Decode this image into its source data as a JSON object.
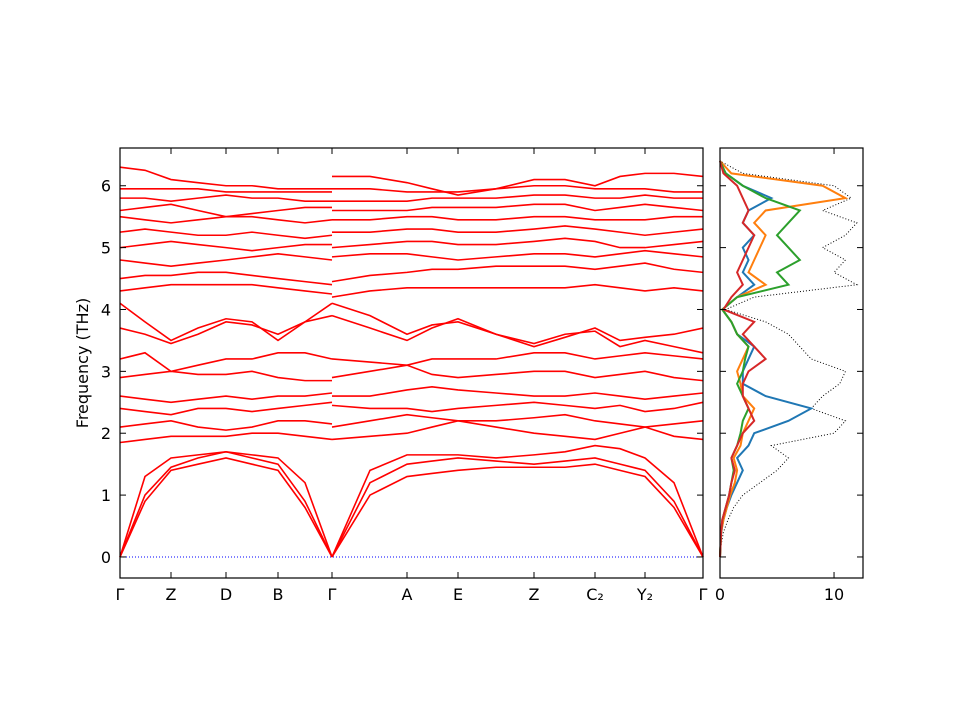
{
  "chart_data": [
    {
      "type": "bands",
      "ylabel": "Frequency (THz)",
      "color": "#ff0000",
      "hline": {
        "value": 0,
        "color": "#0000ff"
      },
      "xlim": [
        0,
        583
      ],
      "ylim": [
        -0.34,
        6.61
      ],
      "yticks": [
        0,
        1,
        2,
        3,
        4,
        5,
        6
      ],
      "xticks": [
        {
          "value": 0,
          "label": "Γ"
        },
        {
          "value": 51,
          "label": "Z"
        },
        {
          "value": 106,
          "label": "D"
        },
        {
          "value": 158,
          "label": "B"
        },
        {
          "value": 212,
          "label": "Γ"
        },
        {
          "value": 287,
          "label": "A"
        },
        {
          "value": 338,
          "label": "E"
        },
        {
          "value": 414,
          "label": "Z"
        },
        {
          "value": 475,
          "label": "C₂"
        },
        {
          "value": 525,
          "label": "Y₂"
        },
        {
          "value": 583,
          "label": "Γ"
        }
      ],
      "x": [
        0,
        25,
        51,
        78,
        106,
        132,
        158,
        185,
        212,
        212,
        212,
        250,
        287,
        312,
        338,
        376,
        414,
        445,
        475,
        500,
        525,
        554,
        583
      ],
      "series": [
        {
          "values": [
            0,
            0.9,
            1.4,
            1.5,
            1.6,
            1.5,
            1.4,
            0.8,
            0,
            null,
            0,
            1.0,
            1.3,
            1.35,
            1.4,
            1.45,
            1.45,
            1.45,
            1.5,
            1.4,
            1.3,
            0.8,
            0
          ]
        },
        {
          "values": [
            0,
            1.0,
            1.45,
            1.6,
            1.7,
            1.6,
            1.5,
            0.9,
            0,
            null,
            0,
            1.2,
            1.5,
            1.55,
            1.6,
            1.55,
            1.5,
            1.55,
            1.6,
            1.5,
            1.4,
            0.9,
            0
          ]
        },
        {
          "values": [
            0,
            1.3,
            1.6,
            1.65,
            1.7,
            1.65,
            1.6,
            1.2,
            0,
            null,
            0,
            1.4,
            1.65,
            1.65,
            1.65,
            1.6,
            1.65,
            1.7,
            1.8,
            1.75,
            1.6,
            1.2,
            0
          ]
        },
        {
          "values": [
            1.85,
            1.9,
            1.95,
            1.95,
            1.95,
            2.0,
            2.0,
            1.95,
            1.9,
            null,
            1.9,
            1.95,
            2.0,
            2.1,
            2.2,
            2.1,
            2.0,
            1.95,
            1.9,
            2.0,
            2.1,
            1.95,
            1.9
          ]
        },
        {
          "values": [
            2.1,
            2.15,
            2.2,
            2.1,
            2.05,
            2.1,
            2.2,
            2.2,
            2.15,
            null,
            2.1,
            2.2,
            2.3,
            2.25,
            2.2,
            2.2,
            2.25,
            2.3,
            2.2,
            2.15,
            2.1,
            2.15,
            2.2
          ]
        },
        {
          "values": [
            2.4,
            2.35,
            2.3,
            2.4,
            2.4,
            2.35,
            2.4,
            2.45,
            2.5,
            null,
            2.45,
            2.4,
            2.4,
            2.35,
            2.4,
            2.45,
            2.5,
            2.45,
            2.4,
            2.45,
            2.35,
            2.4,
            2.5
          ]
        },
        {
          "values": [
            2.6,
            2.55,
            2.5,
            2.55,
            2.6,
            2.55,
            2.6,
            2.6,
            2.65,
            null,
            2.6,
            2.6,
            2.7,
            2.75,
            2.7,
            2.65,
            2.6,
            2.6,
            2.65,
            2.6,
            2.55,
            2.6,
            2.65
          ]
        },
        {
          "values": [
            2.9,
            2.95,
            3.0,
            2.95,
            2.95,
            3.0,
            2.9,
            2.85,
            2.85,
            null,
            2.9,
            3.0,
            3.1,
            2.95,
            2.9,
            2.95,
            3.0,
            3.0,
            2.9,
            2.95,
            3.0,
            2.9,
            2.85
          ]
        },
        {
          "values": [
            3.2,
            3.3,
            3.0,
            3.1,
            3.2,
            3.2,
            3.3,
            3.3,
            3.2,
            null,
            3.2,
            3.15,
            3.1,
            3.2,
            3.2,
            3.2,
            3.3,
            3.3,
            3.2,
            3.25,
            3.3,
            3.25,
            3.2
          ]
        },
        {
          "values": [
            3.7,
            3.6,
            3.45,
            3.6,
            3.8,
            3.75,
            3.6,
            3.8,
            3.9,
            null,
            3.9,
            3.7,
            3.5,
            3.7,
            3.85,
            3.6,
            3.4,
            3.55,
            3.7,
            3.5,
            3.55,
            3.6,
            3.7
          ]
        },
        {
          "values": [
            4.1,
            3.8,
            3.5,
            3.7,
            3.85,
            3.8,
            3.5,
            3.8,
            4.1,
            null,
            4.1,
            3.9,
            3.6,
            3.75,
            3.8,
            3.6,
            3.45,
            3.6,
            3.65,
            3.4,
            3.5,
            3.4,
            3.3
          ]
        },
        {
          "values": [
            4.3,
            4.35,
            4.4,
            4.4,
            4.4,
            4.4,
            4.35,
            4.3,
            4.25,
            null,
            4.2,
            4.3,
            4.35,
            4.35,
            4.35,
            4.35,
            4.35,
            4.35,
            4.4,
            4.35,
            4.3,
            4.35,
            4.3
          ]
        },
        {
          "values": [
            4.5,
            4.55,
            4.55,
            4.6,
            4.6,
            4.55,
            4.5,
            4.45,
            4.4,
            null,
            4.45,
            4.55,
            4.6,
            4.65,
            4.65,
            4.7,
            4.7,
            4.7,
            4.65,
            4.7,
            4.75,
            4.65,
            4.6
          ]
        },
        {
          "values": [
            4.8,
            4.75,
            4.7,
            4.75,
            4.8,
            4.85,
            4.9,
            4.85,
            4.8,
            null,
            4.85,
            4.9,
            4.9,
            4.85,
            4.8,
            4.85,
            4.9,
            4.9,
            4.85,
            4.9,
            4.95,
            4.9,
            4.85
          ]
        },
        {
          "values": [
            5.0,
            5.05,
            5.1,
            5.05,
            5.0,
            4.95,
            5.0,
            5.05,
            5.05,
            null,
            5.0,
            5.05,
            5.1,
            5.1,
            5.05,
            5.05,
            5.1,
            5.15,
            5.1,
            5.0,
            5.0,
            5.05,
            5.1
          ]
        },
        {
          "values": [
            5.25,
            5.3,
            5.25,
            5.2,
            5.2,
            5.25,
            5.2,
            5.15,
            5.2,
            null,
            5.25,
            5.25,
            5.3,
            5.3,
            5.25,
            5.25,
            5.3,
            5.35,
            5.3,
            5.25,
            5.2,
            5.25,
            5.3
          ]
        },
        {
          "values": [
            5.5,
            5.45,
            5.4,
            5.45,
            5.5,
            5.5,
            5.45,
            5.4,
            5.45,
            null,
            5.45,
            5.45,
            5.5,
            5.5,
            5.45,
            5.45,
            5.5,
            5.5,
            5.45,
            5.45,
            5.45,
            5.5,
            5.5
          ]
        },
        {
          "values": [
            5.6,
            5.65,
            5.7,
            5.6,
            5.5,
            5.55,
            5.6,
            5.65,
            5.65,
            null,
            5.6,
            5.6,
            5.6,
            5.65,
            5.65,
            5.65,
            5.7,
            5.7,
            5.6,
            5.65,
            5.7,
            5.65,
            5.6
          ]
        },
        {
          "values": [
            5.8,
            5.8,
            5.75,
            5.8,
            5.85,
            5.8,
            5.8,
            5.75,
            5.75,
            null,
            5.75,
            5.75,
            5.75,
            5.8,
            5.8,
            5.8,
            5.85,
            5.85,
            5.8,
            5.8,
            5.85,
            5.8,
            5.8
          ]
        },
        {
          "values": [
            5.95,
            5.95,
            5.95,
            5.95,
            5.9,
            5.9,
            5.9,
            5.9,
            5.9,
            null,
            5.95,
            5.95,
            5.9,
            5.9,
            5.9,
            5.95,
            6.0,
            6.0,
            5.95,
            5.95,
            5.95,
            5.9,
            5.9
          ]
        },
        {
          "values": [
            6.3,
            6.25,
            6.1,
            6.05,
            6.0,
            6.0,
            5.95,
            5.95,
            5.95,
            null,
            6.15,
            6.15,
            6.05,
            5.95,
            5.85,
            5.95,
            6.1,
            6.1,
            6.0,
            6.15,
            6.2,
            6.2,
            6.15
          ]
        }
      ]
    },
    {
      "type": "density",
      "xlim": [
        0,
        12.54
      ],
      "xticks": [
        0,
        10
      ],
      "ylim": [
        -0.34,
        6.61
      ],
      "yticks": [
        0,
        1,
        2,
        3,
        4,
        5,
        6
      ],
      "frequencies": [
        0,
        0.2,
        0.4,
        0.6,
        0.8,
        1.0,
        1.2,
        1.4,
        1.6,
        1.8,
        2.0,
        2.2,
        2.4,
        2.6,
        2.8,
        3.0,
        3.2,
        3.4,
        3.6,
        3.8,
        4.0,
        4.2,
        4.4,
        4.6,
        4.8,
        5.0,
        5.2,
        5.4,
        5.6,
        5.8,
        6.0,
        6.2,
        6.4
      ],
      "series": [
        {
          "color": "#000000",
          "dash": "dotted",
          "values": [
            0,
            0.1,
            0.3,
            0.7,
            1.2,
            2,
            3.5,
            5,
            6,
            4.5,
            10,
            11,
            8,
            9,
            10.5,
            11,
            8,
            7,
            6,
            4,
            0.5,
            3,
            12,
            10,
            11,
            9,
            11,
            12,
            9,
            11.5,
            10,
            2,
            0
          ]
        },
        {
          "color": "#1f77b4",
          "values": [
            0,
            0.05,
            0.1,
            0.3,
            0.6,
            1,
            1.5,
            2,
            1.5,
            2.5,
            3,
            6,
            8,
            4,
            2,
            2,
            2.5,
            3,
            1.5,
            1,
            0.2,
            1.5,
            3,
            2,
            2.5,
            2,
            3,
            2,
            2.5,
            4.5,
            2,
            0.5,
            0
          ]
        },
        {
          "color": "#ff7f0e",
          "values": [
            0,
            0.05,
            0.1,
            0.3,
            0.6,
            0.9,
            1.3,
            1.5,
            1.2,
            1.8,
            2,
            2.5,
            3,
            2,
            1.8,
            1.5,
            2,
            2.5,
            1.5,
            1,
            0.2,
            1.5,
            4,
            2.5,
            3,
            3.5,
            4,
            3,
            4,
            11,
            9,
            1,
            0
          ]
        },
        {
          "color": "#2ca02c",
          "values": [
            0,
            0.05,
            0.1,
            0.2,
            0.5,
            0.8,
            1,
            1.2,
            1,
            1.5,
            1.8,
            2,
            2.5,
            2,
            1.5,
            2,
            2.2,
            2.5,
            1.5,
            1,
            0.2,
            1.5,
            6,
            5,
            7,
            6,
            5,
            6,
            7,
            4,
            2,
            0.5,
            0
          ]
        },
        {
          "color": "#d62728",
          "values": [
            0,
            0.05,
            0.1,
            0.2,
            0.5,
            0.8,
            1,
            1.3,
            1,
            1.5,
            2,
            3,
            2.5,
            2,
            2,
            2.5,
            4,
            3,
            2,
            3,
            0.3,
            1,
            2,
            1.5,
            2,
            2.5,
            3,
            2,
            2.5,
            2,
            1.5,
            0.3,
            0
          ]
        }
      ]
    }
  ]
}
